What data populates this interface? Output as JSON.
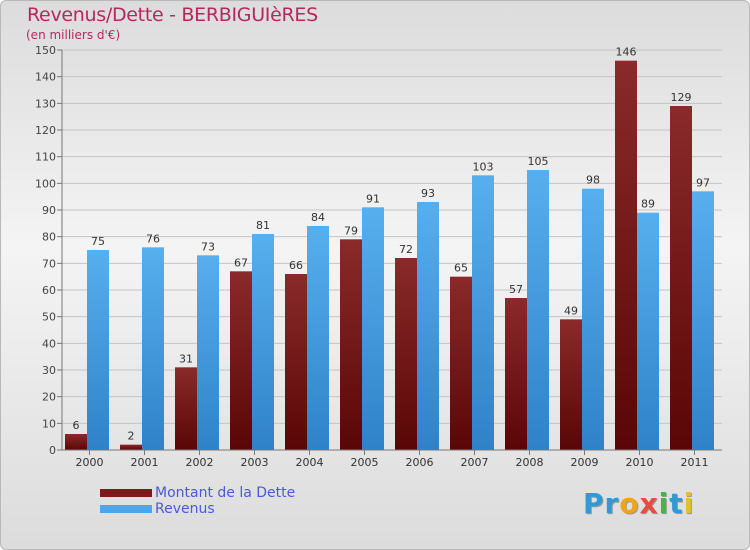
{
  "header": {
    "title": "Revenus/Dette - BERBIGUIèRES",
    "subtitle": "(en milliers d'€)"
  },
  "chart_data": {
    "type": "bar",
    "title": "Revenus/Dette - BERBIGUIèRES",
    "ylabel": "(en milliers d'€)",
    "xlabel": "",
    "ylim": [
      0,
      150
    ],
    "yticks": [
      0,
      10,
      20,
      30,
      40,
      50,
      60,
      70,
      80,
      90,
      100,
      110,
      120,
      130,
      140,
      150
    ],
    "grid": true,
    "categories": [
      "2000",
      "2001",
      "2002",
      "2003",
      "2004",
      "2005",
      "2006",
      "2007",
      "2008",
      "2009",
      "2010",
      "2011"
    ],
    "series": [
      {
        "name": "Montant de la Dette",
        "color": "#7a1c1c",
        "values": [
          6,
          2,
          31,
          67,
          66,
          79,
          72,
          65,
          57,
          49,
          146,
          129
        ]
      },
      {
        "name": "Revenus",
        "color": "#4ea6e6",
        "values": [
          75,
          76,
          73,
          81,
          84,
          91,
          93,
          103,
          105,
          98,
          89,
          97
        ]
      }
    ]
  },
  "legend": {
    "items": [
      {
        "label": "Montant de la Dette",
        "color": "#7a1c1c"
      },
      {
        "label": "Revenus",
        "color": "#4ea6e6"
      }
    ]
  },
  "logo": {
    "letters": [
      "P",
      "r",
      "o",
      "x",
      "i",
      "t",
      "i"
    ],
    "colors": [
      "#2f9ad8",
      "#2f9ad8",
      "#f0a321",
      "#e74c3c",
      "#43b54a",
      "#2f9ad8",
      "#e5c02b"
    ]
  }
}
